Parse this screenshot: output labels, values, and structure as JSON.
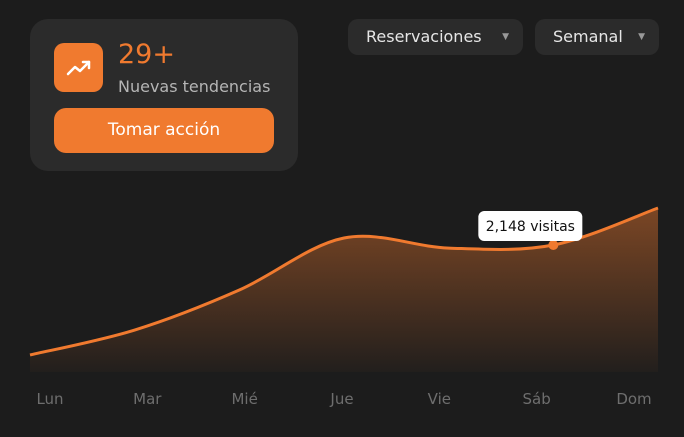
{
  "card": {
    "stat": "29+",
    "caption": "Nuevas tendencias",
    "button": "Tomar acción"
  },
  "filters": [
    "Reservaciones",
    "Semanal"
  ],
  "chart_data": {
    "type": "area",
    "color": "#f07a2f",
    "categories": [
      "Lun",
      "Mar",
      "Mié",
      "Jue",
      "Vie",
      "Sáb",
      "Dom"
    ],
    "values": [
      288,
      710,
      1387,
      2266,
      2096,
      2148,
      2774
    ],
    "highlight_index": 5,
    "highlight_label": "2,148 visitas"
  }
}
